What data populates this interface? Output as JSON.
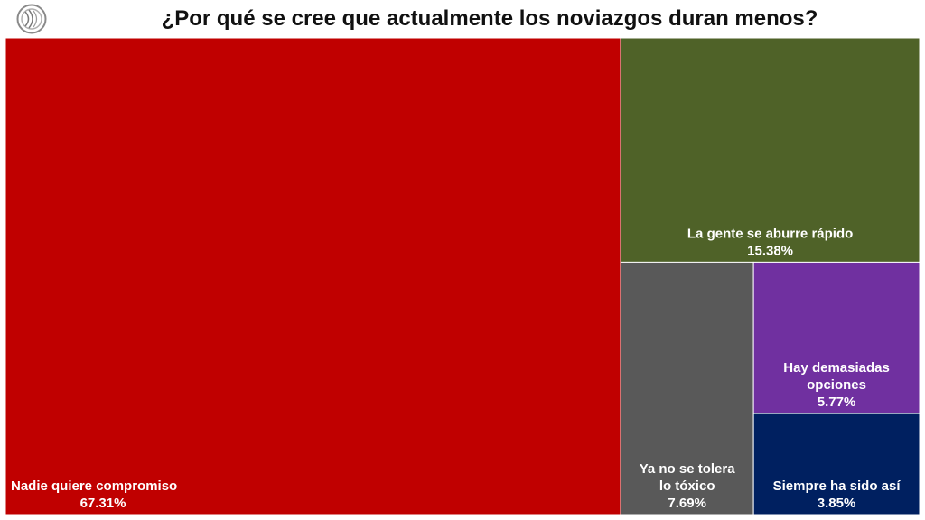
{
  "chart_data": {
    "type": "treemap",
    "title": "¿Por qué se cree que actualmente los noviazgos duran menos?",
    "items": [
      {
        "label": [
          "Nadie quiere compromiso"
        ],
        "value_label": "67.31%",
        "value": 67.31,
        "color": "#c00000",
        "align": "left"
      },
      {
        "label": [
          "La gente se aburre rápido"
        ],
        "value_label": "15.38%",
        "value": 15.38,
        "color": "#4f6228",
        "align": "center"
      },
      {
        "label": [
          "Ya no se tolera",
          "lo tóxico"
        ],
        "value_label": "7.69%",
        "value": 7.69,
        "color": "#595959",
        "align": "center"
      },
      {
        "label": [
          "Hay demasiadas",
          "opciones"
        ],
        "value_label": "5.77%",
        "value": 5.77,
        "color": "#7030a0",
        "align": "center"
      },
      {
        "label": [
          "Siempre ha sido así"
        ],
        "value_label": "3.85%",
        "value": 3.85,
        "color": "#002060",
        "align": "center"
      }
    ]
  }
}
